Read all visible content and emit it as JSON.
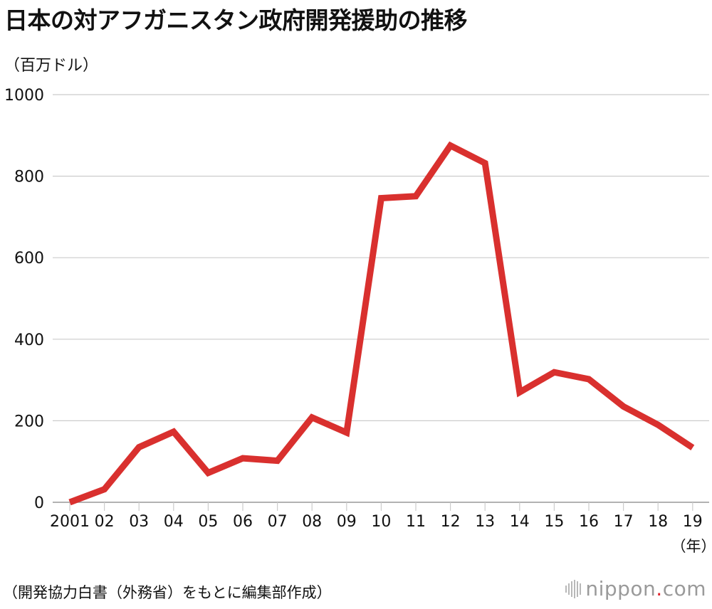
{
  "title": "日本の対アフガニスタン政府開発援助の推移",
  "unit_label": "（百万ドル）",
  "source": "（開発協力白書（外務省）をもとに編集部作成）",
  "logo": {
    "name": "nippon",
    "dot": ".",
    "suffix": "com"
  },
  "colors": {
    "line": "#d9302e",
    "grid": "#cccccc",
    "axis": "#999999",
    "text": "#111111"
  },
  "chart_data": {
    "type": "line",
    "title": "日本の対アフガニスタン政府開発援助の推移",
    "ylabel": "（百万ドル）",
    "xlabel": "（年）",
    "ylim": [
      0,
      1000
    ],
    "yticks": [
      0,
      200,
      400,
      600,
      800,
      1000
    ],
    "grid": true,
    "categories": [
      "2001",
      "02",
      "03",
      "04",
      "05",
      "06",
      "07",
      "08",
      "09",
      "10",
      "11",
      "12",
      "13",
      "14",
      "15",
      "16",
      "17",
      "18",
      "19"
    ],
    "series": [
      {
        "values": [
          0,
          32,
          135,
          173,
          72,
          108,
          102,
          208,
          171,
          746,
          751,
          875,
          832,
          270,
          319,
          302,
          235,
          190,
          134
        ]
      }
    ]
  }
}
